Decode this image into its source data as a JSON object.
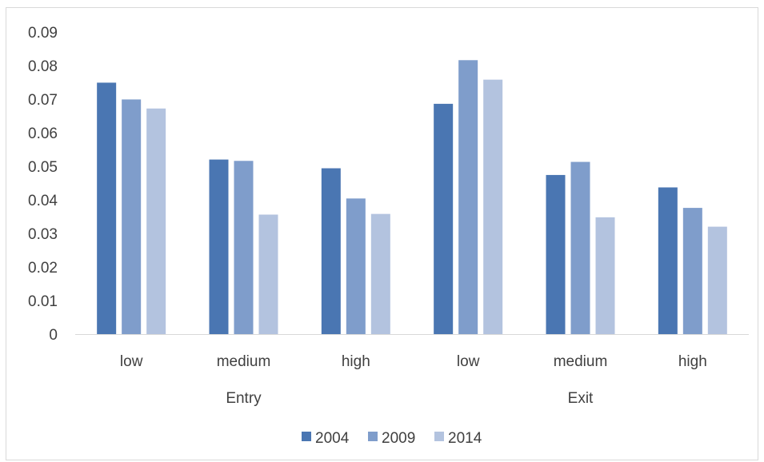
{
  "chart_data": {
    "type": "bar",
    "groups": [
      {
        "label": "Entry",
        "categories": [
          "low",
          "medium",
          "high"
        ]
      },
      {
        "label": "Exit",
        "categories": [
          "low",
          "medium",
          "high"
        ]
      }
    ],
    "categories": [
      "low",
      "medium",
      "high",
      "low",
      "medium",
      "high"
    ],
    "series": [
      {
        "name": "2004",
        "color": "#4a76b2",
        "values": [
          0.0749,
          0.052,
          0.0494,
          0.0686,
          0.0474,
          0.0437
        ]
      },
      {
        "name": "2009",
        "color": "#7f9dcb",
        "values": [
          0.0699,
          0.0516,
          0.0404,
          0.0816,
          0.0513,
          0.0376
        ]
      },
      {
        "name": "2014",
        "color": "#b3c3df",
        "values": [
          0.0672,
          0.0356,
          0.0358,
          0.0758,
          0.0348,
          0.032
        ]
      }
    ],
    "ylim": [
      0,
      0.09
    ],
    "yticks": [
      "0",
      "0.01",
      "0.02",
      "0.03",
      "0.04",
      "0.05",
      "0.06",
      "0.07",
      "0.08",
      "0.09"
    ],
    "grid": false,
    "legend_position": "bottom"
  }
}
